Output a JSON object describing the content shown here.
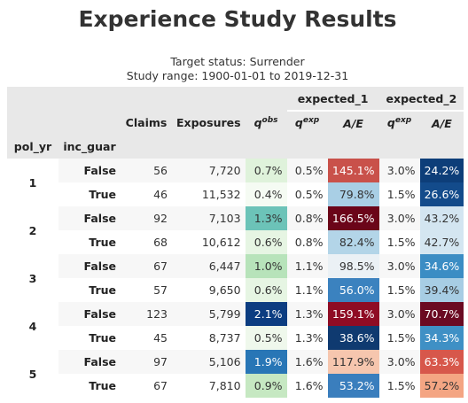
{
  "title": "Experience Study Results",
  "subtitle_lines": [
    "Target status: Surrender",
    "Study range: 1900-01-01 to 2019-12-31"
  ],
  "groups": {
    "expected_1": "expected_1",
    "expected_2": "expected_2"
  },
  "columns": {
    "claims": "Claims",
    "exposures": "Exposures",
    "q_obs_base": "q",
    "q_obs_sup": "obs",
    "q_exp_base": "q",
    "q_exp_sup": "exp",
    "ae": "A/E"
  },
  "index_names": {
    "pol_yr": "pol_yr",
    "inc_guar": "inc_guar"
  },
  "rows": [
    {
      "pol_yr": "1",
      "inc_guar": "False",
      "claims": "56",
      "exposures": "7,720",
      "q_obs": "0.7%",
      "q_exp1": "0.5%",
      "ae1": "145.1%",
      "q_exp2": "3.0%",
      "ae2": "24.2%",
      "colors": {
        "q_obs": [
          "#dff2db",
          "#333333"
        ],
        "ae1": [
          "#c9514a",
          "#ffffff"
        ],
        "ae2": [
          "#0d3e79",
          "#ffffff"
        ]
      }
    },
    {
      "pol_yr": "1",
      "inc_guar": "True",
      "claims": "46",
      "exposures": "11,532",
      "q_obs": "0.4%",
      "q_exp1": "0.5%",
      "ae1": "79.8%",
      "q_exp2": "1.5%",
      "ae2": "26.6%",
      "colors": {
        "q_obs": [
          "#f5fbf3",
          "#333333"
        ],
        "ae1": [
          "#a9cfe5",
          "#333333"
        ],
        "ae2": [
          "#134b8b",
          "#ffffff"
        ]
      }
    },
    {
      "pol_yr": "2",
      "inc_guar": "False",
      "claims": "92",
      "exposures": "7,103",
      "q_obs": "1.3%",
      "q_exp1": "0.8%",
      "ae1": "166.5%",
      "q_exp2": "3.0%",
      "ae2": "43.2%",
      "colors": {
        "q_obs": [
          "#6cc3b8",
          "#333333"
        ],
        "ae1": [
          "#6b0519",
          "#ffffff"
        ],
        "ae2": [
          "#d3e5f1",
          "#333333"
        ]
      }
    },
    {
      "pol_yr": "2",
      "inc_guar": "True",
      "claims": "68",
      "exposures": "10,612",
      "q_obs": "0.6%",
      "q_exp1": "0.8%",
      "ae1": "82.4%",
      "q_exp2": "1.5%",
      "ae2": "42.7%",
      "colors": {
        "q_obs": [
          "#e6f5e3",
          "#333333"
        ],
        "ae1": [
          "#b3d5e8",
          "#333333"
        ],
        "ae2": [
          "#d4e6f1",
          "#333333"
        ]
      }
    },
    {
      "pol_yr": "3",
      "inc_guar": "False",
      "claims": "67",
      "exposures": "6,447",
      "q_obs": "1.0%",
      "q_exp1": "1.1%",
      "ae1": "98.5%",
      "q_exp2": "3.0%",
      "ae2": "34.6%",
      "colors": {
        "q_obs": [
          "#b7e3ba",
          "#333333"
        ],
        "ae1": [
          "#ebf1f5",
          "#333333"
        ],
        "ae2": [
          "#3b8dc4",
          "#ffffff"
        ]
      }
    },
    {
      "pol_yr": "3",
      "inc_guar": "True",
      "claims": "57",
      "exposures": "9,650",
      "q_obs": "0.6%",
      "q_exp1": "1.1%",
      "ae1": "56.0%",
      "q_exp2": "1.5%",
      "ae2": "39.4%",
      "colors": {
        "q_obs": [
          "#e6f5e3",
          "#333333"
        ],
        "ae1": [
          "#3b82bf",
          "#ffffff"
        ],
        "ae2": [
          "#a7cde4",
          "#333333"
        ]
      }
    },
    {
      "pol_yr": "4",
      "inc_guar": "False",
      "claims": "123",
      "exposures": "5,799",
      "q_obs": "2.1%",
      "q_exp1": "1.3%",
      "ae1": "159.1%",
      "q_exp2": "3.0%",
      "ae2": "70.7%",
      "colors": {
        "q_obs": [
          "#0c3d81",
          "#ffffff"
        ],
        "ae1": [
          "#8f0c24",
          "#ffffff"
        ],
        "ae2": [
          "#6b0a22",
          "#ffffff"
        ]
      }
    },
    {
      "pol_yr": "4",
      "inc_guar": "True",
      "claims": "45",
      "exposures": "8,737",
      "q_obs": "0.5%",
      "q_exp1": "1.3%",
      "ae1": "38.6%",
      "q_exp2": "1.5%",
      "ae2": "34.3%",
      "colors": {
        "q_obs": [
          "#eff8ec",
          "#333333"
        ],
        "ae1": [
          "#0f3a70",
          "#ffffff"
        ],
        "ae2": [
          "#3f90c5",
          "#ffffff"
        ]
      }
    },
    {
      "pol_yr": "5",
      "inc_guar": "False",
      "claims": "97",
      "exposures": "5,106",
      "q_obs": "1.9%",
      "q_exp1": "1.6%",
      "ae1": "117.9%",
      "q_exp2": "3.0%",
      "ae2": "63.3%",
      "colors": {
        "q_obs": [
          "#2876b6",
          "#ffffff"
        ],
        "ae1": [
          "#f6c6ae",
          "#333333"
        ],
        "ae2": [
          "#d7574b",
          "#ffffff"
        ]
      }
    },
    {
      "pol_yr": "5",
      "inc_guar": "True",
      "claims": "67",
      "exposures": "7,810",
      "q_obs": "0.9%",
      "q_exp1": "1.6%",
      "ae1": "53.2%",
      "q_exp2": "1.5%",
      "ae2": "57.2%",
      "colors": {
        "q_obs": [
          "#c6e8c2",
          "#333333"
        ],
        "ae1": [
          "#3a7ebd",
          "#ffffff"
        ],
        "ae2": [
          "#f4a583",
          "#333333"
        ]
      }
    }
  ]
}
